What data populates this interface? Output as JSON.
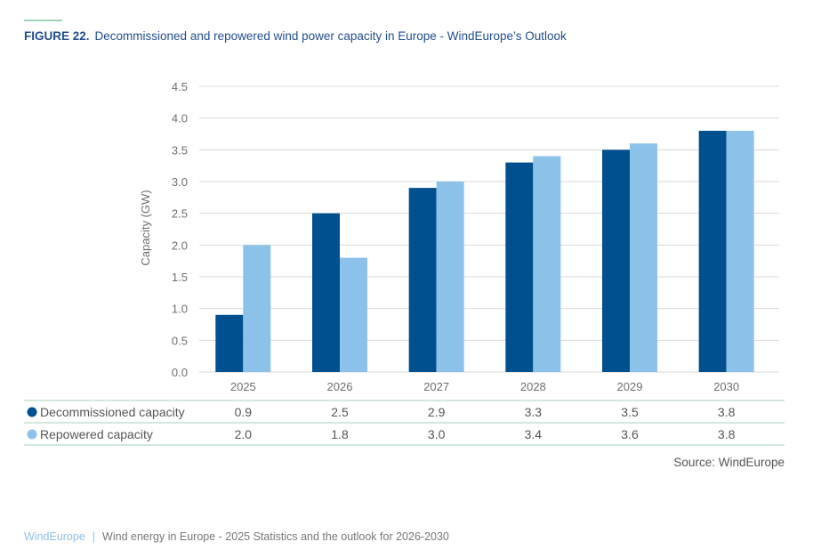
{
  "figure": {
    "number": "FIGURE 22.",
    "title": "Decommissioned and repowered wind power capacity in Europe - WindEurope’s Outlook"
  },
  "colors": {
    "decommissioned": "#00508f",
    "repowered": "#8cc2ea",
    "gridline": "#d9d9d9",
    "table_rule": "#9fd3b8",
    "title": "#1f4e8c"
  },
  "chart_data": {
    "type": "bar",
    "title": "Decommissioned and repowered wind power capacity in Europe - WindEurope’s Outlook",
    "xlabel": "",
    "ylabel": "Capacity (GW)",
    "ylim": [
      0,
      4.5
    ],
    "yticks": [
      "0.0",
      "0.5",
      "1.0",
      "1.5",
      "2.0",
      "2.5",
      "3.0",
      "3.5",
      "4.0",
      "4.5"
    ],
    "grid": true,
    "legend": "table-below",
    "categories": [
      "2025",
      "2026",
      "2027",
      "2028",
      "2029",
      "2030"
    ],
    "series": [
      {
        "name": "Decommissioned capacity",
        "values": [
          0.9,
          2.5,
          2.9,
          3.3,
          3.5,
          3.8
        ],
        "labels": [
          "0.9",
          "2.5",
          "2.9",
          "3.3",
          "3.5",
          "3.8"
        ]
      },
      {
        "name": "Repowered capacity",
        "values": [
          2.0,
          1.8,
          3.0,
          3.4,
          3.6,
          3.8
        ],
        "labels": [
          "2.0",
          "1.8",
          "3.0",
          "3.4",
          "3.6",
          "3.8"
        ]
      }
    ]
  },
  "source": "Source: WindEurope",
  "footer": {
    "brand": "WindEurope",
    "separator": "|",
    "text": "Wind energy in Europe - 2025 Statistics and the outlook for 2026-2030"
  }
}
